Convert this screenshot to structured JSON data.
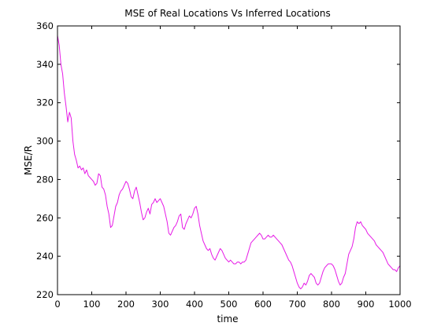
{
  "chart_data": {
    "type": "line",
    "title": "MSE of Real Locations Vs Inferred Locations",
    "xlabel": "time",
    "ylabel": "MSE/R",
    "xlim": [
      0,
      1000
    ],
    "ylim": [
      220,
      360
    ],
    "xticks": [
      0,
      100,
      200,
      300,
      400,
      500,
      600,
      700,
      800,
      900,
      1000
    ],
    "yticks": [
      220,
      240,
      260,
      280,
      300,
      320,
      340,
      360
    ],
    "grid": false,
    "legend": "none",
    "series": [
      {
        "color": "#e61ae6",
        "x": [
          0,
          5,
          10,
          15,
          20,
          25,
          30,
          35,
          40,
          45,
          50,
          55,
          60,
          65,
          70,
          75,
          80,
          85,
          90,
          95,
          100,
          105,
          110,
          115,
          120,
          125,
          130,
          135,
          140,
          145,
          150,
          155,
          160,
          165,
          170,
          175,
          180,
          185,
          190,
          195,
          200,
          205,
          210,
          215,
          220,
          225,
          230,
          235,
          240,
          245,
          250,
          255,
          260,
          265,
          270,
          275,
          280,
          285,
          290,
          295,
          300,
          305,
          310,
          315,
          320,
          325,
          330,
          335,
          340,
          345,
          350,
          355,
          360,
          365,
          370,
          375,
          380,
          385,
          390,
          395,
          400,
          405,
          410,
          415,
          420,
          425,
          430,
          435,
          440,
          445,
          450,
          455,
          460,
          465,
          470,
          475,
          480,
          485,
          490,
          495,
          500,
          505,
          510,
          515,
          520,
          525,
          530,
          535,
          540,
          545,
          550,
          555,
          560,
          565,
          570,
          575,
          580,
          585,
          590,
          595,
          600,
          605,
          610,
          615,
          620,
          625,
          630,
          635,
          640,
          645,
          650,
          655,
          660,
          665,
          670,
          675,
          680,
          685,
          690,
          695,
          700,
          705,
          710,
          715,
          720,
          725,
          730,
          735,
          740,
          745,
          750,
          755,
          760,
          765,
          770,
          775,
          780,
          785,
          790,
          795,
          800,
          805,
          810,
          815,
          820,
          825,
          830,
          835,
          840,
          845,
          850,
          855,
          860,
          865,
          870,
          875,
          880,
          885,
          890,
          895,
          900,
          905,
          910,
          915,
          920,
          925,
          930,
          935,
          940,
          945,
          950,
          955,
          960,
          965,
          970,
          975,
          980,
          985,
          990,
          995,
          1000
        ],
        "y": [
          355,
          350,
          340,
          335,
          325,
          318,
          310,
          315,
          312,
          300,
          293,
          290,
          286,
          287,
          285,
          286,
          283,
          285,
          282,
          281,
          280,
          279,
          277,
          278,
          283,
          282,
          276,
          275,
          272,
          266,
          262,
          255,
          256,
          261,
          266,
          268,
          272,
          274,
          275,
          277,
          279,
          278,
          275,
          271,
          270,
          274,
          276,
          272,
          268,
          263,
          259,
          260,
          263,
          265,
          262,
          267,
          268,
          270,
          268,
          269,
          270,
          268,
          266,
          262,
          258,
          252,
          251,
          253,
          255,
          256,
          258,
          261,
          262,
          255,
          254,
          257,
          259,
          261,
          260,
          262,
          265,
          266,
          262,
          256,
          252,
          248,
          246,
          244,
          243,
          244,
          241,
          239,
          238,
          240,
          242,
          244,
          243,
          241,
          239,
          238,
          237,
          238,
          237,
          236,
          236,
          237,
          237,
          236,
          237,
          237,
          238,
          241,
          244,
          247,
          248,
          249,
          250,
          251,
          252,
          251,
          249,
          249,
          250,
          251,
          250,
          250,
          251,
          250,
          249,
          248,
          247,
          246,
          244,
          242,
          240,
          238,
          237,
          235,
          232,
          229,
          226,
          224,
          223,
          224,
          226,
          225,
          227,
          230,
          231,
          230,
          229,
          226,
          225,
          226,
          229,
          232,
          234,
          235,
          236,
          236,
          236,
          235,
          233,
          230,
          227,
          225,
          226,
          229,
          231,
          236,
          241,
          243,
          245,
          249,
          255,
          258,
          257,
          258,
          256,
          255,
          254,
          252,
          251,
          250,
          249,
          248,
          246,
          245,
          244,
          243,
          242,
          240,
          238,
          236,
          235,
          234,
          233,
          233,
          232,
          234,
          235
        ]
      }
    ]
  }
}
